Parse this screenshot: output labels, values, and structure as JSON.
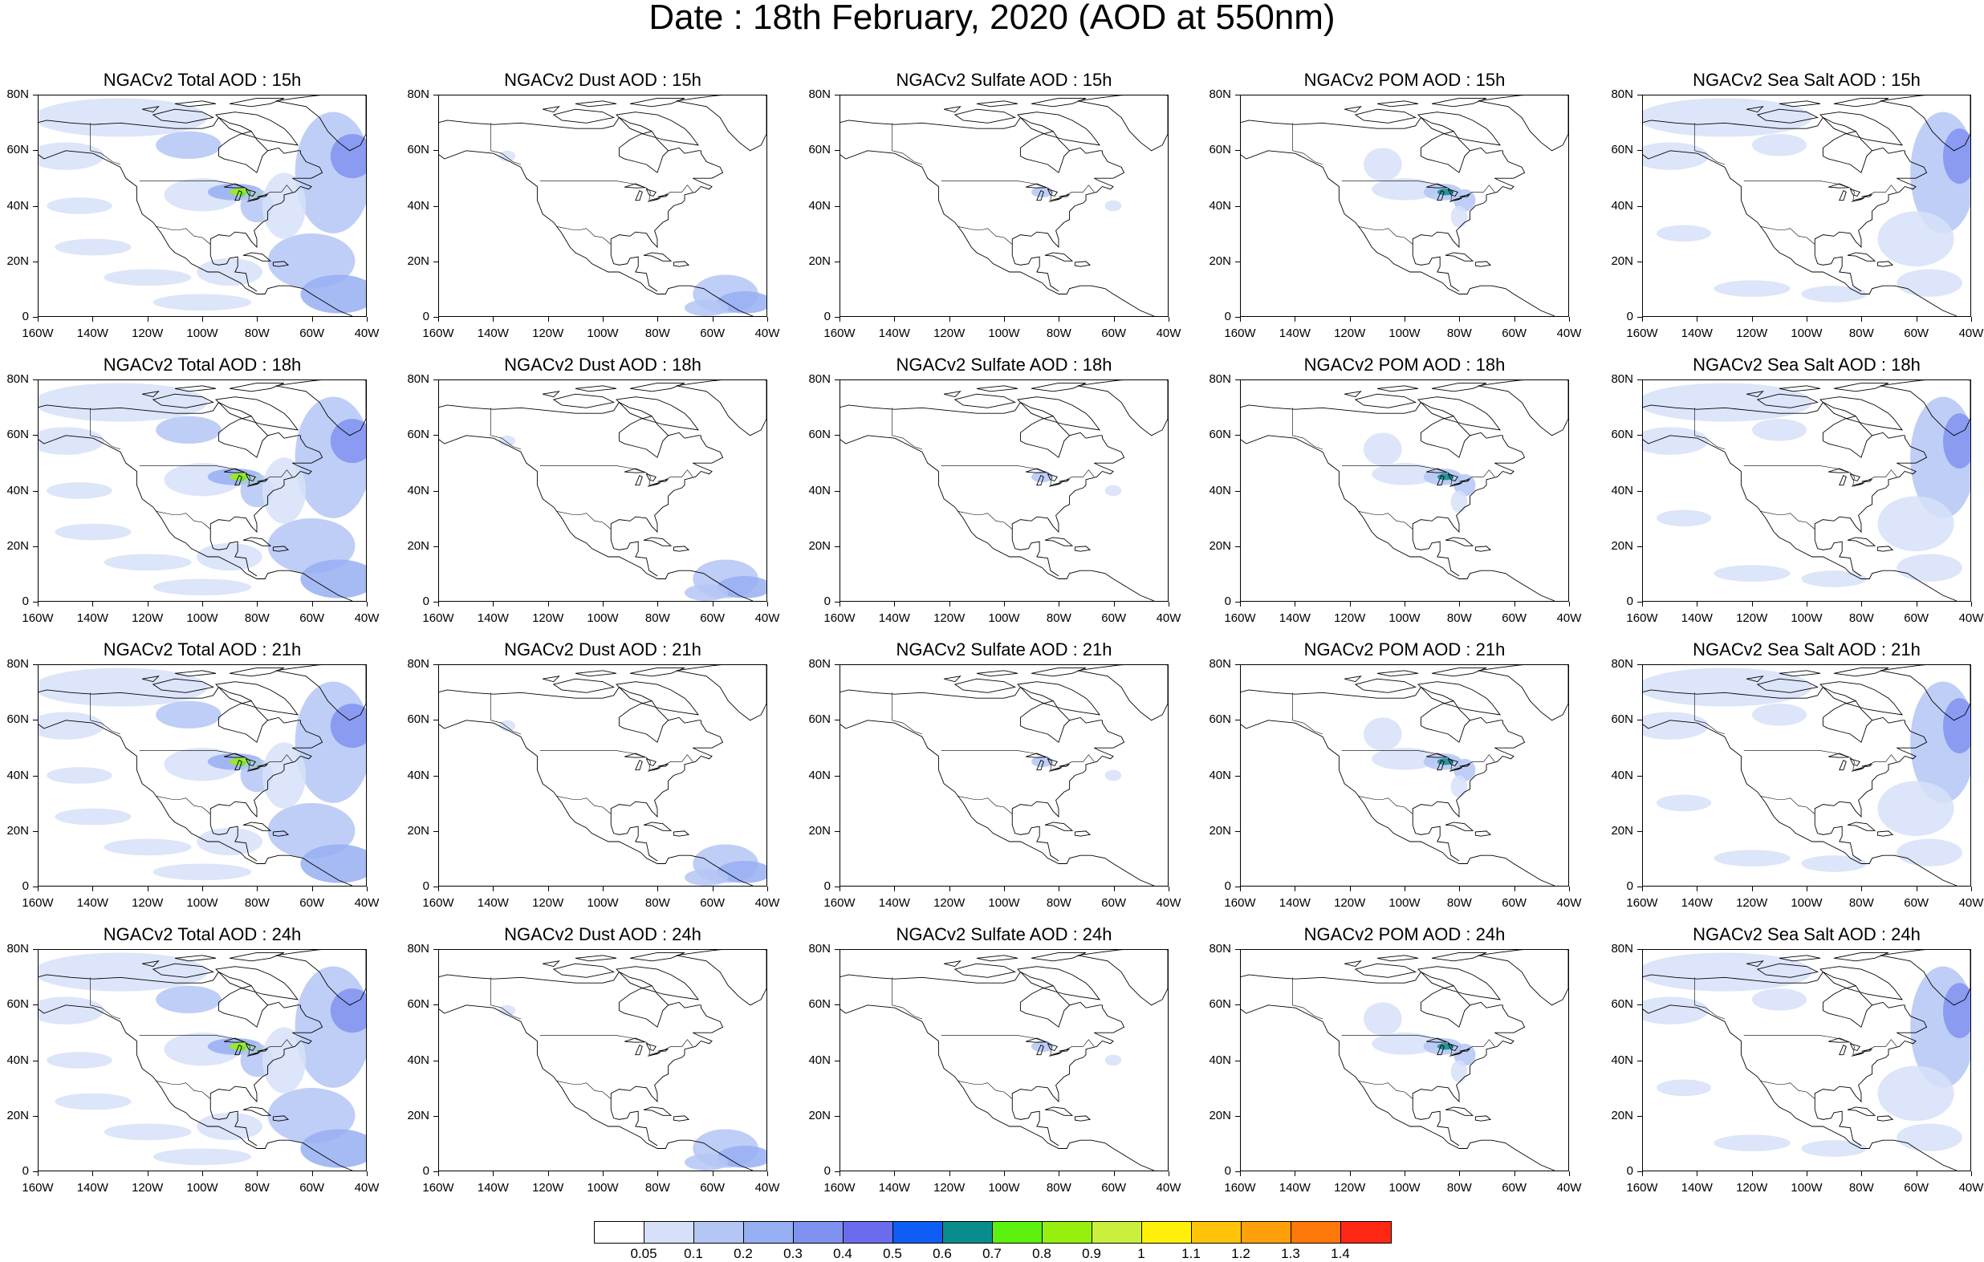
{
  "title": "Date : 18th February, 2020 (AOD at 550nm)",
  "panels": [
    {
      "title": "NGACv2 Total AOD : 15h",
      "field": "total"
    },
    {
      "title": "NGACv2 Dust AOD : 15h",
      "field": "dust"
    },
    {
      "title": "NGACv2 Sulfate AOD : 15h",
      "field": "sulfate"
    },
    {
      "title": "NGACv2 POM AOD : 15h",
      "field": "pom"
    },
    {
      "title": "NGACv2 Sea Salt AOD : 15h",
      "field": "seasalt"
    },
    {
      "title": "NGACv2 Total AOD : 18h",
      "field": "total"
    },
    {
      "title": "NGACv2 Dust AOD : 18h",
      "field": "dust"
    },
    {
      "title": "NGACv2 Sulfate AOD : 18h",
      "field": "sulfate"
    },
    {
      "title": "NGACv2 POM AOD : 18h",
      "field": "pom"
    },
    {
      "title": "NGACv2 Sea Salt AOD : 18h",
      "field": "seasalt"
    },
    {
      "title": "NGACv2 Total AOD : 21h",
      "field": "total"
    },
    {
      "title": "NGACv2 Dust AOD : 21h",
      "field": "dust"
    },
    {
      "title": "NGACv2 Sulfate AOD : 21h",
      "field": "sulfate"
    },
    {
      "title": "NGACv2 POM AOD : 21h",
      "field": "pom"
    },
    {
      "title": "NGACv2 Sea Salt AOD : 21h",
      "field": "seasalt"
    },
    {
      "title": "NGACv2 Total AOD : 24h",
      "field": "total"
    },
    {
      "title": "NGACv2 Dust AOD : 24h",
      "field": "dust"
    },
    {
      "title": "NGACv2 Sulfate AOD : 24h",
      "field": "sulfate"
    },
    {
      "title": "NGACv2 POM AOD : 24h",
      "field": "pom"
    },
    {
      "title": "NGACv2 Sea Salt  AOD : 24h",
      "field": "seasalt"
    }
  ],
  "lat_labels": [
    "80N",
    "60N",
    "40N",
    "20N",
    "0"
  ],
  "lon_labels": [
    "160W",
    "140W",
    "120W",
    "100W",
    "80W",
    "60W",
    "40W"
  ],
  "colorbar": {
    "labels": [
      "0.05",
      "0.1",
      "0.2",
      "0.3",
      "0.4",
      "0.5",
      "0.6",
      "0.7",
      "0.8",
      "0.9",
      "1",
      "1.1",
      "1.2",
      "1.3",
      "1.4"
    ],
    "colors": [
      "#ffffff",
      "#d6e0f8",
      "#b4c6f4",
      "#96aef2",
      "#8092f0",
      "#6a6ced",
      "#0e5ef5",
      "#0a8c8c",
      "#5cf00e",
      "#96f00e",
      "#c8f03c",
      "#fff00a",
      "#ffc40a",
      "#ffa00a",
      "#ff780a",
      "#ff2814"
    ]
  }
}
